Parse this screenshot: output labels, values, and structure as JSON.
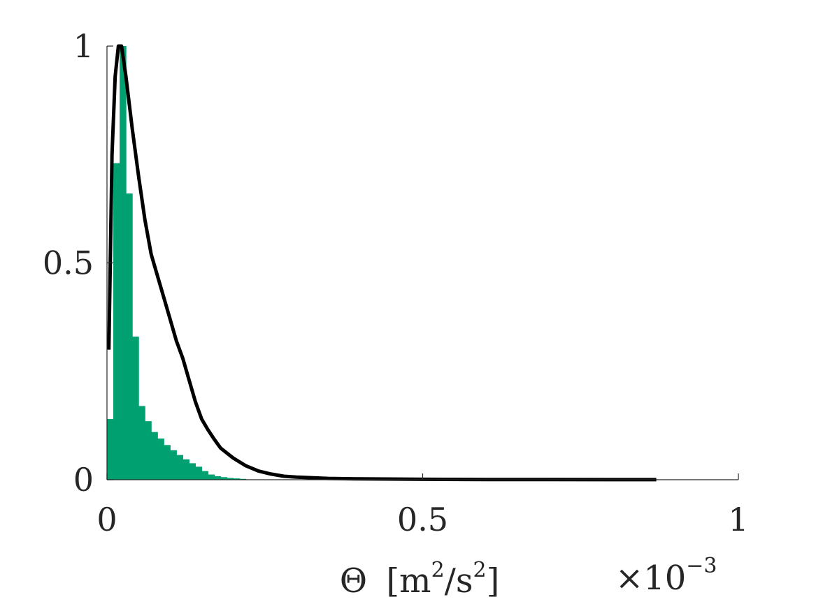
{
  "chart_data": {
    "type": "bar",
    "xlabel": "Θ [m²/s²]",
    "xlabel_parts": {
      "symbol": "Θ",
      "open": "[m",
      "exp1": "2",
      "mid": "/s",
      "exp2": "2",
      "close": "]"
    },
    "x_exponent": {
      "base": "×10",
      "exp": "−3"
    },
    "xlim": [
      0,
      1
    ],
    "ylim": [
      0,
      1
    ],
    "xticks": [
      0,
      0.5,
      1
    ],
    "yticks": [
      0,
      0.5,
      1
    ],
    "xtick_labels": [
      "0",
      "0.5",
      "1"
    ],
    "ytick_labels": [
      "0",
      "0.5",
      "1"
    ],
    "grid": false,
    "histogram": {
      "color": "#00a070",
      "bin_edges": [
        0,
        0.01,
        0.02,
        0.03,
        0.04,
        0.05,
        0.06,
        0.07,
        0.08,
        0.09,
        0.1,
        0.11,
        0.12,
        0.13,
        0.14,
        0.15,
        0.16,
        0.17,
        0.18,
        0.19,
        0.2,
        0.21,
        0.22
      ],
      "values": [
        0.14,
        0.73,
        1.0,
        0.66,
        0.33,
        0.17,
        0.135,
        0.11,
        0.095,
        0.08,
        0.068,
        0.057,
        0.047,
        0.038,
        0.03,
        0.02,
        0.012,
        0.008,
        0.006,
        0.004,
        0.003,
        0.002
      ]
    },
    "curve": {
      "color": "#000000",
      "x": [
        0.003,
        0.008,
        0.013,
        0.018,
        0.023,
        0.03,
        0.04,
        0.05,
        0.06,
        0.07,
        0.08,
        0.09,
        0.1,
        0.11,
        0.12,
        0.13,
        0.14,
        0.15,
        0.16,
        0.17,
        0.18,
        0.2,
        0.22,
        0.24,
        0.26,
        0.28,
        0.3,
        0.35,
        0.4,
        0.5,
        0.6,
        0.7,
        0.8,
        0.87
      ],
      "y": [
        0.3,
        0.75,
        0.93,
        1.0,
        1.0,
        0.93,
        0.81,
        0.7,
        0.6,
        0.52,
        0.47,
        0.42,
        0.37,
        0.32,
        0.28,
        0.23,
        0.18,
        0.14,
        0.115,
        0.093,
        0.073,
        0.05,
        0.032,
        0.02,
        0.013,
        0.008,
        0.006,
        0.003,
        0.002,
        0.001,
        0.0005,
        0.0003,
        0.0002,
        0.0001
      ]
    }
  }
}
